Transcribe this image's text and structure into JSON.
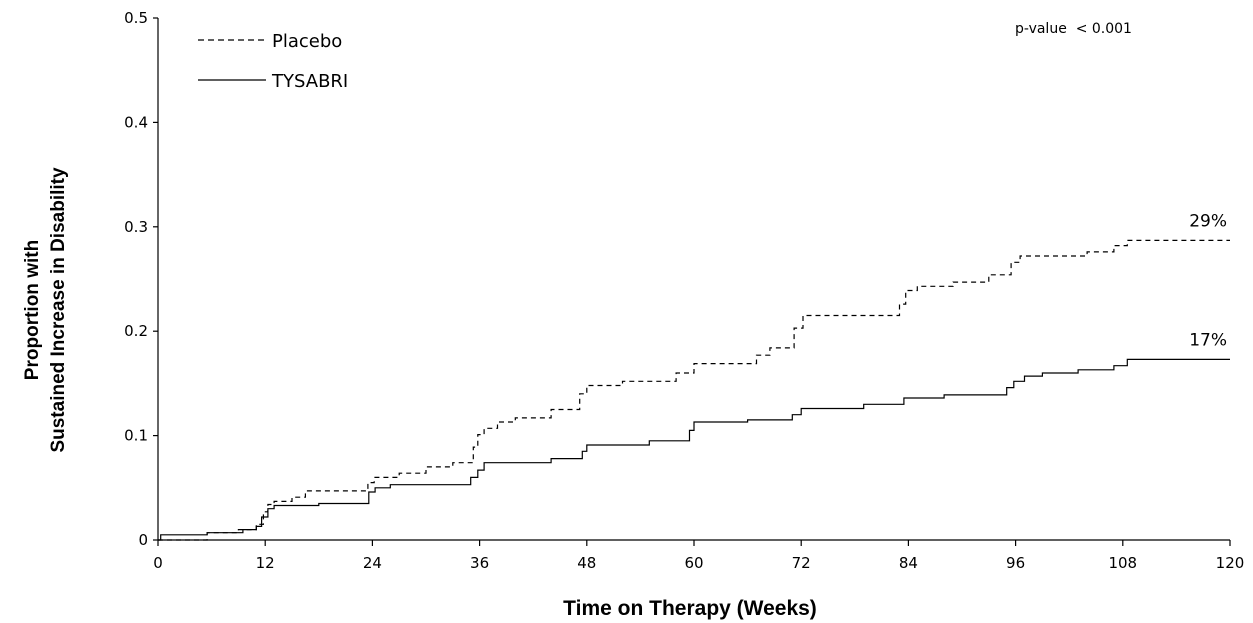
{
  "chart_data": {
    "type": "line",
    "title": "",
    "xlabel": "Time on Therapy (Weeks)",
    "ylabel_line1": "Proportion with",
    "ylabel_line2": "Sustained Increase in Disability",
    "xlim": [
      0,
      120
    ],
    "ylim": [
      0,
      0.5
    ],
    "x_ticks": [
      0,
      12,
      24,
      36,
      48,
      60,
      72,
      84,
      96,
      108,
      120
    ],
    "x_tick_labels": [
      "0",
      "12",
      "24",
      "36",
      "48",
      "60",
      "72",
      "84",
      "96",
      "108",
      "120"
    ],
    "y_ticks": [
      0,
      0.1,
      0.2,
      0.3,
      0.4,
      0.5
    ],
    "y_tick_labels": [
      "0",
      "0.1",
      "0.2",
      "0.3",
      "0.4",
      "0.5"
    ],
    "grid": false,
    "legend": {
      "placement": "top-left"
    },
    "annotation": "p-value  < 0.001",
    "series": [
      {
        "name": "Placebo",
        "style": "dashed",
        "color": "#000000",
        "end_label": "29%",
        "points": [
          [
            0,
            0.0
          ],
          [
            5.5,
            0.0
          ],
          [
            5.5,
            0.007
          ],
          [
            9,
            0.007
          ],
          [
            9,
            0.01
          ],
          [
            11,
            0.01
          ],
          [
            11,
            0.015
          ],
          [
            11.8,
            0.015
          ],
          [
            11.8,
            0.027
          ],
          [
            12.3,
            0.027
          ],
          [
            12.3,
            0.034
          ],
          [
            13,
            0.034
          ],
          [
            13,
            0.037
          ],
          [
            15,
            0.037
          ],
          [
            15,
            0.041
          ],
          [
            16.5,
            0.041
          ],
          [
            16.5,
            0.047
          ],
          [
            23.5,
            0.047
          ],
          [
            23.5,
            0.055
          ],
          [
            24.2,
            0.055
          ],
          [
            24.2,
            0.06
          ],
          [
            27,
            0.06
          ],
          [
            27,
            0.064
          ],
          [
            30,
            0.064
          ],
          [
            30,
            0.07
          ],
          [
            33,
            0.07
          ],
          [
            33,
            0.074
          ],
          [
            35.3,
            0.074
          ],
          [
            35.3,
            0.089
          ],
          [
            35.8,
            0.089
          ],
          [
            35.8,
            0.101
          ],
          [
            36.5,
            0.101
          ],
          [
            36.5,
            0.107
          ],
          [
            38,
            0.107
          ],
          [
            38,
            0.113
          ],
          [
            40,
            0.113
          ],
          [
            40,
            0.117
          ],
          [
            44,
            0.117
          ],
          [
            44,
            0.125
          ],
          [
            47.2,
            0.125
          ],
          [
            47.2,
            0.14
          ],
          [
            48,
            0.14
          ],
          [
            48,
            0.148
          ],
          [
            52,
            0.148
          ],
          [
            52,
            0.152
          ],
          [
            58,
            0.152
          ],
          [
            58,
            0.16
          ],
          [
            60,
            0.16
          ],
          [
            60,
            0.169
          ],
          [
            67,
            0.169
          ],
          [
            67,
            0.177
          ],
          [
            68.5,
            0.177
          ],
          [
            68.5,
            0.184
          ],
          [
            71.2,
            0.184
          ],
          [
            71.2,
            0.203
          ],
          [
            72.2,
            0.203
          ],
          [
            72.2,
            0.215
          ],
          [
            83,
            0.215
          ],
          [
            83,
            0.226
          ],
          [
            83.7,
            0.226
          ],
          [
            83.7,
            0.239
          ],
          [
            85,
            0.239
          ],
          [
            85,
            0.243
          ],
          [
            89,
            0.243
          ],
          [
            89,
            0.247
          ],
          [
            93,
            0.247
          ],
          [
            93,
            0.254
          ],
          [
            95.5,
            0.254
          ],
          [
            95.5,
            0.266
          ],
          [
            96.5,
            0.266
          ],
          [
            96.5,
            0.272
          ],
          [
            104,
            0.272
          ],
          [
            104,
            0.276
          ],
          [
            107,
            0.276
          ],
          [
            107,
            0.282
          ],
          [
            108.5,
            0.282
          ],
          [
            108.5,
            0.287
          ],
          [
            120,
            0.287
          ]
        ]
      },
      {
        "name": "TYSABRI",
        "style": "solid",
        "color": "#000000",
        "end_label": "17%",
        "points": [
          [
            0,
            0.0
          ],
          [
            0.3,
            0.0
          ],
          [
            0.3,
            0.005
          ],
          [
            5.5,
            0.005
          ],
          [
            5.5,
            0.007
          ],
          [
            9.5,
            0.007
          ],
          [
            9.5,
            0.01
          ],
          [
            11,
            0.01
          ],
          [
            11,
            0.013
          ],
          [
            11.6,
            0.013
          ],
          [
            11.6,
            0.022
          ],
          [
            12.3,
            0.022
          ],
          [
            12.3,
            0.03
          ],
          [
            13,
            0.03
          ],
          [
            13,
            0.033
          ],
          [
            18,
            0.033
          ],
          [
            18,
            0.035
          ],
          [
            23.6,
            0.035
          ],
          [
            23.6,
            0.046
          ],
          [
            24.3,
            0.046
          ],
          [
            24.3,
            0.05
          ],
          [
            26,
            0.05
          ],
          [
            26,
            0.053
          ],
          [
            35,
            0.053
          ],
          [
            35,
            0.06
          ],
          [
            35.8,
            0.06
          ],
          [
            35.8,
            0.067
          ],
          [
            36.5,
            0.067
          ],
          [
            36.5,
            0.074
          ],
          [
            44,
            0.074
          ],
          [
            44,
            0.078
          ],
          [
            47.5,
            0.078
          ],
          [
            47.5,
            0.085
          ],
          [
            48,
            0.085
          ],
          [
            48,
            0.091
          ],
          [
            55,
            0.091
          ],
          [
            55,
            0.095
          ],
          [
            59.5,
            0.095
          ],
          [
            59.5,
            0.105
          ],
          [
            60,
            0.105
          ],
          [
            60,
            0.113
          ],
          [
            66,
            0.113
          ],
          [
            66,
            0.115
          ],
          [
            71,
            0.115
          ],
          [
            71,
            0.12
          ],
          [
            72,
            0.12
          ],
          [
            72,
            0.126
          ],
          [
            79,
            0.126
          ],
          [
            79,
            0.13
          ],
          [
            83.5,
            0.13
          ],
          [
            83.5,
            0.136
          ],
          [
            88,
            0.136
          ],
          [
            88,
            0.139
          ],
          [
            95,
            0.139
          ],
          [
            95,
            0.146
          ],
          [
            95.8,
            0.146
          ],
          [
            95.8,
            0.152
          ],
          [
            97,
            0.152
          ],
          [
            97,
            0.157
          ],
          [
            99,
            0.157
          ],
          [
            99,
            0.16
          ],
          [
            103,
            0.16
          ],
          [
            103,
            0.163
          ],
          [
            107,
            0.163
          ],
          [
            107,
            0.167
          ],
          [
            108.5,
            0.167
          ],
          [
            108.5,
            0.173
          ],
          [
            120,
            0.173
          ]
        ]
      }
    ]
  }
}
